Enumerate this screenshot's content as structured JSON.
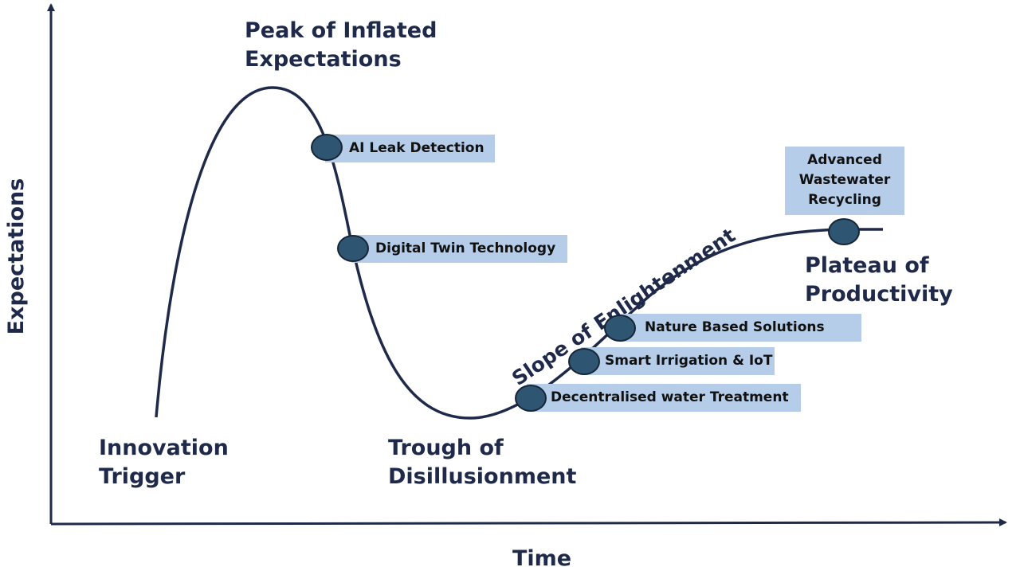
{
  "axes": {
    "y_label": "Expectations",
    "x_label": "Time"
  },
  "phases": {
    "peak": [
      "Peak of Inflated",
      "Expectations"
    ],
    "trigger": [
      "Innovation",
      "Trigger"
    ],
    "trough": [
      "Trough of",
      "Disillusionment"
    ],
    "slope": "Slope of Enlightenment",
    "plateau": [
      "Plateau of",
      "Productivity"
    ]
  },
  "technologies": {
    "ai_leak": "AI Leak Detection",
    "digital_twin": "Digital Twin Technology",
    "nature_based": "Nature Based  Solutions",
    "smart_irrigation": "Smart Irrigation & IoT",
    "decentralised": "Decentralised water Treatment",
    "wastewater": "Advanced\nWastewater\nRecycling"
  },
  "colors": {
    "curve": "#1f2a4a",
    "box": "#b5cde9",
    "marker": "#2e5572"
  }
}
